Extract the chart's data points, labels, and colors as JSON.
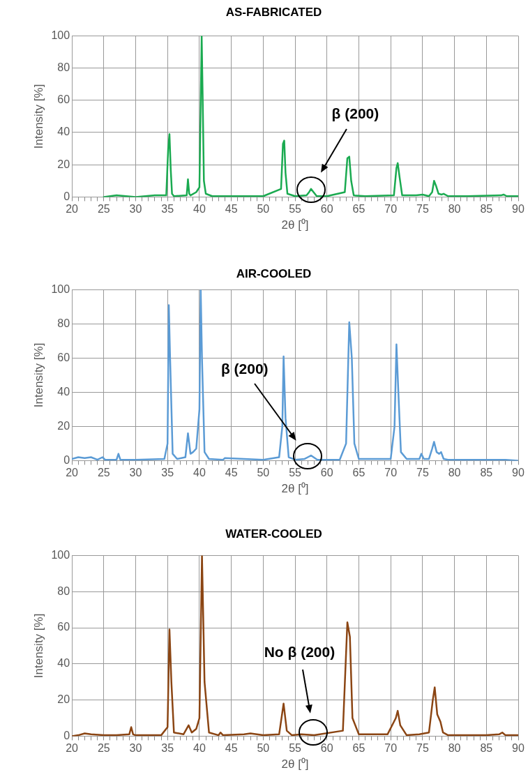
{
  "chart_data": [
    {
      "type": "line",
      "title": "AS-FABRICATED",
      "xlabel": "2θ [⁰]",
      "ylabel": "Intensity [%]",
      "xlim": [
        20,
        90
      ],
      "ylim": [
        0,
        100
      ],
      "grid": true,
      "legend": false,
      "marker": "none",
      "line_style": "solid",
      "xticks": [
        20,
        {
          "value": 21,
          "label": null
        },
        {
          "value": 22,
          "label": null
        },
        {
          "value": 23,
          "label": null
        },
        {
          "value": 24,
          "label": null
        },
        25,
        {
          "value": 26,
          "label": null
        },
        {
          "value": 27,
          "label": null
        },
        {
          "value": 28,
          "label": null
        },
        {
          "value": 29,
          "label": null
        },
        30,
        {
          "value": 31,
          "label": null
        },
        {
          "value": 32,
          "label": null
        },
        {
          "value": 33,
          "label": null
        },
        {
          "value": 34,
          "label": null
        },
        35,
        {
          "value": 36,
          "label": null
        },
        {
          "value": 37,
          "label": null
        },
        {
          "value": 38,
          "label": null
        },
        {
          "value": 39,
          "label": null
        },
        40,
        {
          "value": 41,
          "label": null
        },
        {
          "value": 42,
          "label": null
        },
        {
          "value": 43,
          "label": null
        },
        {
          "value": 44,
          "label": null
        },
        45,
        {
          "value": 46,
          "label": null
        },
        {
          "value": 47,
          "label": null
        },
        {
          "value": 48,
          "label": null
        },
        {
          "value": 49,
          "label": null
        },
        50,
        {
          "value": 51,
          "label": null
        },
        {
          "value": 52,
          "label": null
        },
        {
          "value": 53,
          "label": null
        },
        {
          "value": 54,
          "label": null
        },
        55,
        {
          "value": 56,
          "label": null
        },
        {
          "value": 57,
          "label": null
        },
        {
          "value": 58,
          "label": null
        },
        {
          "value": 59,
          "label": null
        },
        60,
        {
          "value": 61,
          "label": null
        },
        {
          "value": 62,
          "label": null
        },
        {
          "value": 63,
          "label": null
        },
        {
          "value": 64,
          "label": null
        },
        65,
        {
          "value": 66,
          "label": null
        },
        {
          "value": 67,
          "label": null
        },
        {
          "value": 68,
          "label": null
        },
        {
          "value": 69,
          "label": null
        },
        70,
        {
          "value": 71,
          "label": null
        },
        {
          "value": 72,
          "label": null
        },
        {
          "value": 73,
          "label": null
        },
        {
          "value": 74,
          "label": null
        },
        75,
        {
          "value": 76,
          "label": null
        },
        {
          "value": 77,
          "label": null
        },
        {
          "value": 78,
          "label": null
        },
        {
          "value": 79,
          "label": null
        },
        80,
        {
          "value": 81,
          "label": null
        },
        {
          "value": 82,
          "label": null
        },
        {
          "value": 83,
          "label": null
        },
        {
          "value": 84,
          "label": null
        },
        85,
        {
          "value": 86,
          "label": null
        },
        {
          "value": 87,
          "label": null
        },
        {
          "value": 88,
          "label": null
        },
        {
          "value": 89,
          "label": null
        },
        90
      ],
      "yticks": [
        0,
        20,
        40,
        60,
        80,
        100
      ],
      "annotations": [
        "β (200)"
      ],
      "series": [
        {
          "color": "#1aaa50",
          "x": [
            25,
            27,
            30,
            33,
            34.8,
            35.1,
            35.3,
            35.5,
            35.7,
            36,
            38,
            38.2,
            38.4,
            38.6,
            39.5,
            40,
            40.2,
            40.35,
            40.5,
            40.7,
            41,
            42,
            45,
            50,
            52.8,
            53.1,
            53.3,
            53.5,
            53.8,
            55,
            56.8,
            57.2,
            57.5,
            57.9,
            58.4,
            60,
            62.8,
            63.2,
            63.5,
            63.8,
            64.2,
            66,
            70.5,
            70.9,
            71.1,
            71.4,
            71.8,
            74,
            75,
            76,
            76.5,
            76.8,
            77.1,
            77.5,
            78,
            78.3,
            79,
            82,
            87.3,
            87.7,
            88.2,
            90
          ],
          "values": [
            0,
            1,
            0,
            1,
            1,
            30,
            39,
            17,
            2,
            0.5,
            1,
            11,
            2,
            1,
            3,
            6,
            58,
            100,
            64,
            10,
            2,
            0.5,
            0.5,
            0.5,
            5,
            33,
            35,
            15,
            2,
            0.5,
            1,
            3,
            5,
            3,
            0.5,
            0.5,
            3,
            24,
            25,
            10,
            1,
            0.5,
            1,
            18,
            21,
            12,
            1,
            1,
            1.5,
            0.5,
            3,
            10,
            7,
            2,
            1.5,
            2,
            0.5,
            0.5,
            1,
            1.5,
            0.5,
            0.5
          ]
        }
      ]
    },
    {
      "type": "line",
      "title": "AIR-COOLED",
      "xlabel": "2θ [⁰]",
      "ylabel": "Intensity [%]",
      "xlim": [
        20,
        90
      ],
      "ylim": [
        0,
        100
      ],
      "grid": true,
      "legend": false,
      "marker": "none",
      "line_style": "solid",
      "xticks": [
        20,
        {
          "value": 21,
          "label": null
        },
        {
          "value": 22,
          "label": null
        },
        {
          "value": 23,
          "label": null
        },
        {
          "value": 24,
          "label": null
        },
        25,
        {
          "value": 26,
          "label": null
        },
        {
          "value": 27,
          "label": null
        },
        {
          "value": 28,
          "label": null
        },
        {
          "value": 29,
          "label": null
        },
        30,
        {
          "value": 31,
          "label": null
        },
        {
          "value": 32,
          "label": null
        },
        {
          "value": 33,
          "label": null
        },
        {
          "value": 34,
          "label": null
        },
        35,
        {
          "value": 36,
          "label": null
        },
        {
          "value": 37,
          "label": null
        },
        {
          "value": 38,
          "label": null
        },
        {
          "value": 39,
          "label": null
        },
        40,
        {
          "value": 41,
          "label": null
        },
        {
          "value": 42,
          "label": null
        },
        {
          "value": 43,
          "label": null
        },
        {
          "value": 44,
          "label": null
        },
        45,
        {
          "value": 46,
          "label": null
        },
        {
          "value": 47,
          "label": null
        },
        {
          "value": 48,
          "label": null
        },
        {
          "value": 49,
          "label": null
        },
        50,
        {
          "value": 51,
          "label": null
        },
        {
          "value": 52,
          "label": null
        },
        {
          "value": 53,
          "label": null
        },
        {
          "value": 54,
          "label": null
        },
        55,
        {
          "value": 56,
          "label": null
        },
        {
          "value": 57,
          "label": null
        },
        {
          "value": 58,
          "label": null
        },
        {
          "value": 59,
          "label": null
        },
        60,
        {
          "value": 61,
          "label": null
        },
        {
          "value": 62,
          "label": null
        },
        {
          "value": 63,
          "label": null
        },
        {
          "value": 64,
          "label": null
        },
        65,
        {
          "value": 66,
          "label": null
        },
        {
          "value": 67,
          "label": null
        },
        {
          "value": 68,
          "label": null
        },
        {
          "value": 69,
          "label": null
        },
        70,
        {
          "value": 71,
          "label": null
        },
        {
          "value": 72,
          "label": null
        },
        {
          "value": 73,
          "label": null
        },
        {
          "value": 74,
          "label": null
        },
        75,
        {
          "value": 76,
          "label": null
        },
        {
          "value": 77,
          "label": null
        },
        {
          "value": 78,
          "label": null
        },
        {
          "value": 79,
          "label": null
        },
        80,
        {
          "value": 81,
          "label": null
        },
        {
          "value": 82,
          "label": null
        },
        {
          "value": 83,
          "label": null
        },
        {
          "value": 84,
          "label": null
        },
        85,
        {
          "value": 86,
          "label": null
        },
        {
          "value": 87,
          "label": null
        },
        {
          "value": 88,
          "label": null
        },
        {
          "value": 89,
          "label": null
        },
        90
      ],
      "yticks": [
        0,
        20,
        40,
        60,
        80,
        100
      ],
      "annotations": [
        "β (200)"
      ],
      "series": [
        {
          "color": "#5b9bd5",
          "x": [
            20,
            21,
            22,
            23,
            24,
            24.8,
            25.2,
            27,
            27.3,
            27.6,
            30,
            34.5,
            35,
            35.2,
            35.4,
            35.8,
            36.5,
            37.8,
            38.2,
            38.6,
            39,
            39.5,
            40,
            40.2,
            40.4,
            40.8,
            41.5,
            43.7,
            44,
            50,
            52.5,
            53,
            53.2,
            53.5,
            54,
            55,
            56.5,
            57,
            57.5,
            58.5,
            62,
            63,
            63.5,
            63.9,
            64.3,
            65,
            70,
            70.6,
            70.9,
            71.2,
            71.6,
            72.5,
            74.5,
            74.8,
            75.2,
            76,
            76.5,
            76.8,
            77.2,
            77.6,
            77.9,
            78.3,
            79,
            82,
            87,
            88,
            90
          ],
          "values": [
            1,
            2,
            1.5,
            2,
            0.5,
            2,
            0.5,
            0.5,
            4,
            0.5,
            0.5,
            1,
            10,
            91,
            60,
            4,
            1,
            2,
            16,
            4,
            5,
            7,
            30,
            100,
            60,
            5,
            1,
            0.5,
            1.5,
            0.5,
            2,
            20,
            61,
            25,
            2,
            0.5,
            1,
            2,
            3,
            0.5,
            0.5,
            10,
            81,
            60,
            10,
            1,
            1,
            20,
            68,
            40,
            5,
            1,
            1,
            4,
            1,
            1,
            7,
            11,
            5,
            4,
            5,
            1,
            0.5,
            0.5,
            0.5,
            0.5,
            0
          ]
        }
      ]
    },
    {
      "type": "line",
      "title": "WATER-COOLED",
      "xlabel": "2θ [⁰]",
      "ylabel": "Intensity [%]",
      "xlim": [
        20,
        90
      ],
      "ylim": [
        0,
        100
      ],
      "grid": true,
      "legend": false,
      "marker": "none",
      "line_style": "solid",
      "xticks": [
        20,
        {
          "value": 21,
          "label": null
        },
        {
          "value": 22,
          "label": null
        },
        {
          "value": 23,
          "label": null
        },
        {
          "value": 24,
          "label": null
        },
        25,
        {
          "value": 26,
          "label": null
        },
        {
          "value": 27,
          "label": null
        },
        {
          "value": 28,
          "label": null
        },
        {
          "value": 29,
          "label": null
        },
        30,
        {
          "value": 31,
          "label": null
        },
        {
          "value": 32,
          "label": null
        },
        {
          "value": 33,
          "label": null
        },
        {
          "value": 34,
          "label": null
        },
        35,
        {
          "value": 36,
          "label": null
        },
        {
          "value": 37,
          "label": null
        },
        {
          "value": 38,
          "label": null
        },
        {
          "value": 39,
          "label": null
        },
        40,
        {
          "value": 41,
          "label": null
        },
        {
          "value": 42,
          "label": null
        },
        {
          "value": 43,
          "label": null
        },
        {
          "value": 44,
          "label": null
        },
        45,
        {
          "value": 46,
          "label": null
        },
        {
          "value": 47,
          "label": null
        },
        {
          "value": 48,
          "label": null
        },
        {
          "value": 49,
          "label": null
        },
        50,
        {
          "value": 51,
          "label": null
        },
        {
          "value": 52,
          "label": null
        },
        {
          "value": 53,
          "label": null
        },
        {
          "value": 54,
          "label": null
        },
        55,
        {
          "value": 56,
          "label": null
        },
        {
          "value": 57,
          "label": null
        },
        {
          "value": 58,
          "label": null
        },
        {
          "value": 59,
          "label": null
        },
        60,
        {
          "value": 61,
          "label": null
        },
        {
          "value": 62,
          "label": null
        },
        {
          "value": 63,
          "label": null
        },
        {
          "value": 64,
          "label": null
        },
        65,
        {
          "value": 66,
          "label": null
        },
        {
          "value": 67,
          "label": null
        },
        {
          "value": 68,
          "label": null
        },
        {
          "value": 69,
          "label": null
        },
        70,
        {
          "value": 71,
          "label": null
        },
        {
          "value": 72,
          "label": null
        },
        {
          "value": 73,
          "label": null
        },
        {
          "value": 74,
          "label": null
        },
        75,
        {
          "value": 76,
          "label": null
        },
        {
          "value": 77,
          "label": null
        },
        {
          "value": 78,
          "label": null
        },
        {
          "value": 79,
          "label": null
        },
        80,
        {
          "value": 81,
          "label": null
        },
        {
          "value": 82,
          "label": null
        },
        {
          "value": 83,
          "label": null
        },
        {
          "value": 84,
          "label": null
        },
        85,
        {
          "value": 86,
          "label": null
        },
        {
          "value": 87,
          "label": null
        },
        {
          "value": 88,
          "label": null
        },
        {
          "value": 89,
          "label": null
        },
        90
      ],
      "yticks": [
        0,
        20,
        40,
        60,
        80,
        100
      ],
      "annotations": [
        "No β (200)"
      ],
      "series": [
        {
          "color": "#8b4513",
          "x": [
            20,
            21,
            22,
            23,
            25,
            27,
            29,
            29.3,
            29.6,
            30,
            34,
            35,
            35.3,
            35.6,
            36,
            37.5,
            38.3,
            38.8,
            39.5,
            40,
            40.4,
            40.8,
            41.5,
            43,
            43.3,
            43.7,
            47,
            48,
            50,
            52.5,
            53.2,
            53.7,
            54.5,
            56,
            58,
            62.5,
            63.2,
            63.6,
            64,
            65,
            69.5,
            70.8,
            71.1,
            71.5,
            72.5,
            74.5,
            76,
            76.6,
            76.9,
            77.3,
            77.8,
            78.2,
            79,
            85,
            87,
            87.5,
            88,
            90
          ],
          "values": [
            0,
            0.5,
            1.5,
            1,
            0.5,
            0.5,
            1,
            5,
            1,
            0.5,
            0.5,
            5,
            59,
            30,
            2,
            1,
            6,
            2,
            4,
            10,
            100,
            30,
            2,
            0.5,
            2,
            0.5,
            1,
            1.5,
            0.5,
            1,
            18,
            3,
            0.5,
            1,
            0.5,
            3,
            63,
            55,
            10,
            1,
            1,
            10,
            14,
            6,
            0.5,
            1,
            2,
            20,
            27,
            12,
            8,
            2,
            0.5,
            0.5,
            1,
            2,
            0.5,
            0.5
          ]
        }
      ]
    }
  ]
}
